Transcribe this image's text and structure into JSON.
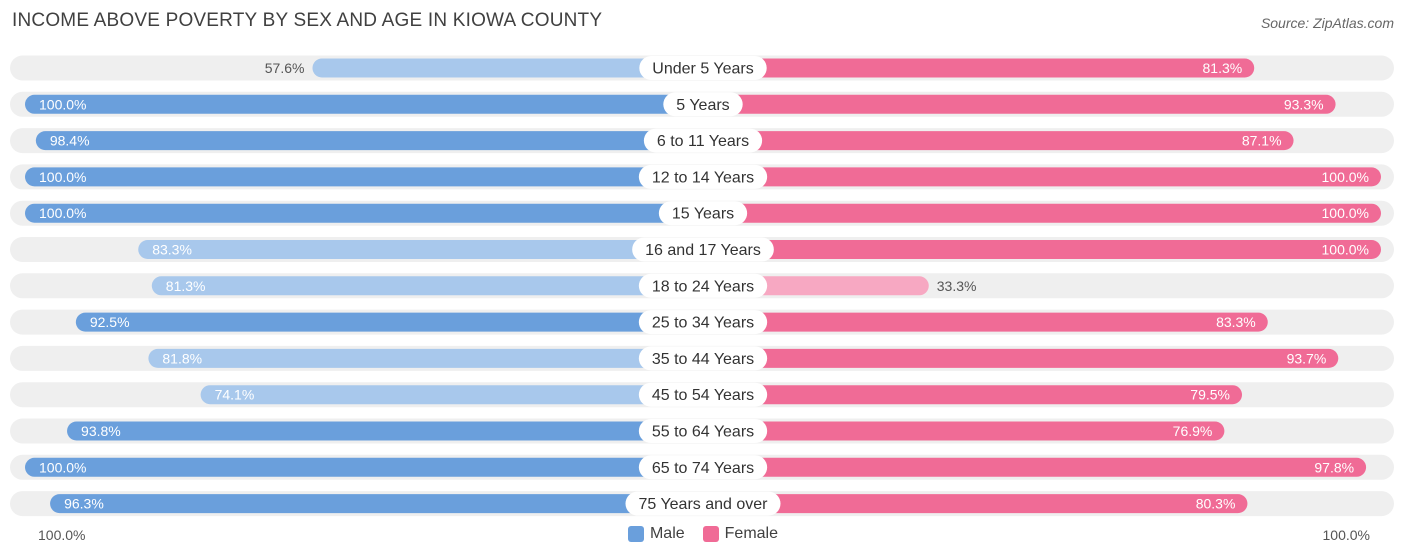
{
  "chart_data": {
    "type": "bar",
    "title": "INCOME ABOVE POVERTY BY SEX AND AGE IN KIOWA COUNTY",
    "source": "Source: ZipAtlas.com",
    "categories": [
      "Under 5 Years",
      "5 Years",
      "6 to 11 Years",
      "12 to 14 Years",
      "15 Years",
      "16 and 17 Years",
      "18 to 24 Years",
      "25 to 34 Years",
      "35 to 44 Years",
      "45 to 54 Years",
      "55 to 64 Years",
      "65 to 74 Years",
      "75 Years and over"
    ],
    "series": [
      {
        "name": "Male",
        "values": [
          57.6,
          100.0,
          98.4,
          100.0,
          100.0,
          83.3,
          81.3,
          92.5,
          81.8,
          74.1,
          93.8,
          100.0,
          96.3
        ],
        "labels": [
          "57.6%",
          "100.0%",
          "98.4%",
          "100.0%",
          "100.0%",
          "83.3%",
          "81.3%",
          "92.5%",
          "81.8%",
          "74.1%",
          "93.8%",
          "100.0%",
          "96.3%"
        ]
      },
      {
        "name": "Female",
        "values": [
          81.3,
          93.3,
          87.1,
          100.0,
          100.0,
          100.0,
          33.3,
          83.3,
          93.7,
          79.5,
          76.9,
          97.8,
          80.3
        ],
        "labels": [
          "81.3%",
          "93.3%",
          "87.1%",
          "100.0%",
          "100.0%",
          "100.0%",
          "33.3%",
          "83.3%",
          "93.7%",
          "79.5%",
          "76.9%",
          "97.8%",
          "80.3%"
        ]
      }
    ],
    "xlim": [
      0,
      100
    ],
    "axis_left_label": "100.0%",
    "axis_right_label": "100.0%",
    "legend_position": "bottom-center"
  },
  "colors": {
    "male": "#6a9fdc",
    "male_light": "#a8c8ec",
    "female": "#f06b96",
    "female_light": "#f7a8c2",
    "track": "#efefef"
  }
}
